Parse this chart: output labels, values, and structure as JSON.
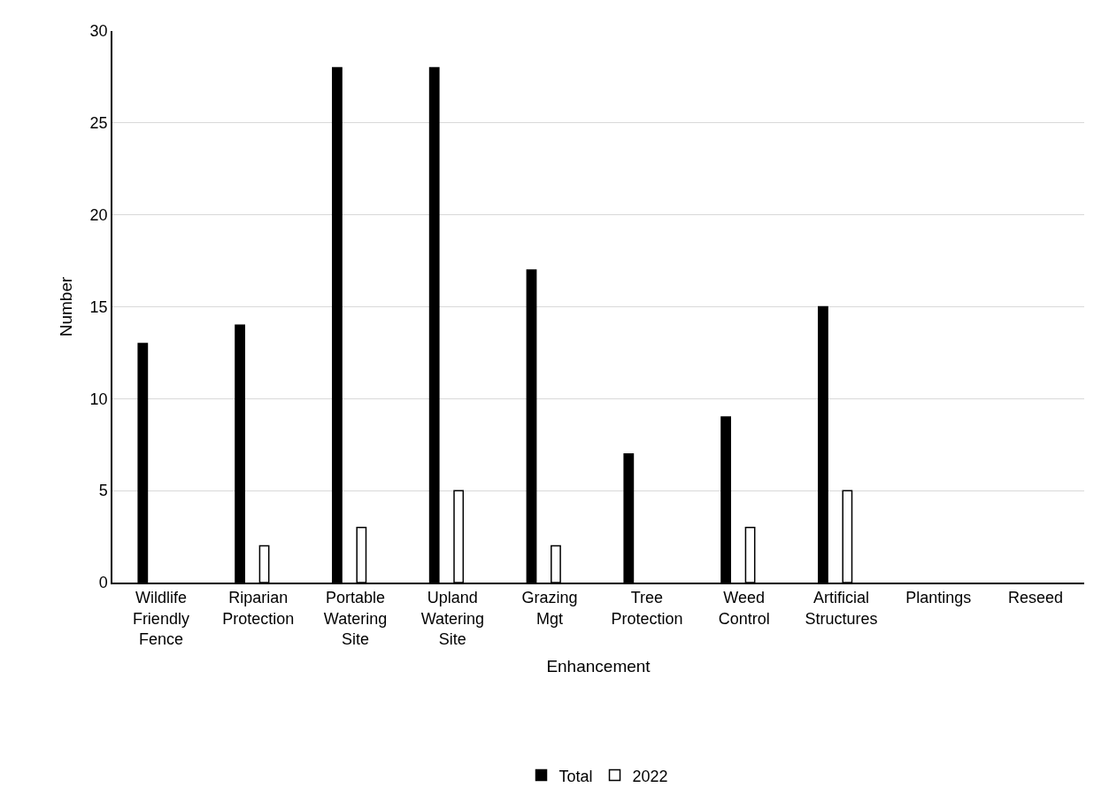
{
  "chart_data": {
    "type": "bar",
    "xlabel": "Enhancement",
    "ylabel": "Number",
    "categories": [
      "Wildlife Friendly Fence",
      "Riparian Protection",
      "Portable Watering Site",
      "Upland Watering Site",
      "Grazing Mgt",
      "Tree Protection",
      "Weed Control",
      "Artificial Structures",
      "Plantings",
      "Reseed"
    ],
    "series": [
      {
        "name": "Total",
        "color": "#000000",
        "values": [
          13,
          14,
          28,
          28,
          17,
          7,
          9,
          15,
          0,
          0
        ]
      },
      {
        "name": "2022",
        "color": "#ffffff",
        "values": [
          0,
          2,
          3,
          5,
          2,
          0,
          3,
          5,
          0,
          0
        ]
      }
    ],
    "ylim": [
      0,
      30
    ],
    "yticks": [
      0,
      5,
      10,
      15,
      20,
      25,
      30
    ],
    "grid": "y",
    "legend": "bottom"
  }
}
